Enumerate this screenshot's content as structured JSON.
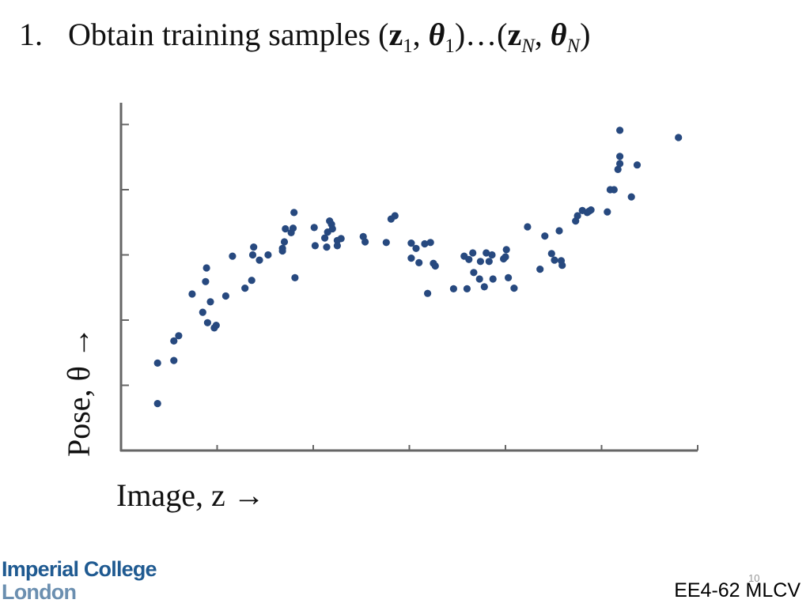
{
  "slide": {
    "title": {
      "number": "1.",
      "text": "Obtain training samples ",
      "open1": "(",
      "z": "z",
      "sub1": "1",
      "comma1": ", ",
      "theta": "θ",
      "sub1b": "1",
      "mid": ")…(",
      "z2": "z",
      "subN": "N",
      "comma2": ", ",
      "theta2": "θ",
      "subN2": "N",
      "close": ")"
    },
    "page_number": "10",
    "course_code": "EE4-62 MLCV",
    "logo": {
      "line1": "Imperial College",
      "line2": "London"
    }
  },
  "colors": {
    "points": "#27497f",
    "axes": "#666666"
  },
  "chart_data": {
    "type": "scatter",
    "title": "",
    "xlabel": "Image, z →",
    "ylabel": "Pose, θ →",
    "xlim": [
      0,
      5.8
    ],
    "ylim": [
      0,
      5.2
    ],
    "x_ticks": [
      1,
      2,
      3,
      4,
      5
    ],
    "y_ticks": [
      1,
      2,
      3,
      4,
      5
    ],
    "tick_labels_shown": false,
    "grid": false,
    "series": [
      {
        "points": [
          [
            0.38,
            1.34
          ],
          [
            0.38,
            0.72
          ],
          [
            0.55,
            1.38
          ],
          [
            0.6,
            1.76
          ],
          [
            0.55,
            1.68
          ],
          [
            0.74,
            2.4
          ],
          [
            0.85,
            2.12
          ],
          [
            0.89,
            2.8
          ],
          [
            0.88,
            2.59
          ],
          [
            0.9,
            1.96
          ],
          [
            0.93,
            2.28
          ],
          [
            0.97,
            1.88
          ],
          [
            0.99,
            1.92
          ],
          [
            1.09,
            2.37
          ],
          [
            1.16,
            2.98
          ],
          [
            1.29,
            2.49
          ],
          [
            1.36,
            2.61
          ],
          [
            1.37,
            3.0
          ],
          [
            1.38,
            3.12
          ],
          [
            1.44,
            2.92
          ],
          [
            1.53,
            3.0
          ],
          [
            1.68,
            3.1
          ],
          [
            1.68,
            3.06
          ],
          [
            1.7,
            3.2
          ],
          [
            1.71,
            3.4
          ],
          [
            1.77,
            3.34
          ],
          [
            1.79,
            3.41
          ],
          [
            1.81,
            2.65
          ],
          [
            1.8,
            3.65
          ],
          [
            2.01,
            3.42
          ],
          [
            2.02,
            3.14
          ],
          [
            2.12,
            3.26
          ],
          [
            2.14,
            3.12
          ],
          [
            2.15,
            3.35
          ],
          [
            2.17,
            3.52
          ],
          [
            2.19,
            3.47
          ],
          [
            2.2,
            3.4
          ],
          [
            2.25,
            3.22
          ],
          [
            2.25,
            3.14
          ],
          [
            2.29,
            3.25
          ],
          [
            2.52,
            3.28
          ],
          [
            2.54,
            3.2
          ],
          [
            2.76,
            3.19
          ],
          [
            2.81,
            3.55
          ],
          [
            2.85,
            3.6
          ],
          [
            3.02,
            3.18
          ],
          [
            3.02,
            2.95
          ],
          [
            3.07,
            3.1
          ],
          [
            3.1,
            2.88
          ],
          [
            3.16,
            3.17
          ],
          [
            3.19,
            2.41
          ],
          [
            3.22,
            3.19
          ],
          [
            3.25,
            2.87
          ],
          [
            3.27,
            2.83
          ],
          [
            3.46,
            2.48
          ],
          [
            3.57,
            2.98
          ],
          [
            3.6,
            2.48
          ],
          [
            3.62,
            2.93
          ],
          [
            3.66,
            3.03
          ],
          [
            3.67,
            2.73
          ],
          [
            3.73,
            2.63
          ],
          [
            3.74,
            2.9
          ],
          [
            3.78,
            2.51
          ],
          [
            3.8,
            3.03
          ],
          [
            3.83,
            2.9
          ],
          [
            3.86,
            3.0
          ],
          [
            3.87,
            2.63
          ],
          [
            3.98,
            2.94
          ],
          [
            4.0,
            2.97
          ],
          [
            4.01,
            3.08
          ],
          [
            4.03,
            2.65
          ],
          [
            4.09,
            2.49
          ],
          [
            4.23,
            3.43
          ],
          [
            4.36,
            2.78
          ],
          [
            4.41,
            3.29
          ],
          [
            4.48,
            3.02
          ],
          [
            4.51,
            2.92
          ],
          [
            4.56,
            3.37
          ],
          [
            4.58,
            2.91
          ],
          [
            4.59,
            2.84
          ],
          [
            4.73,
            3.52
          ],
          [
            4.75,
            3.6
          ],
          [
            4.8,
            3.68
          ],
          [
            4.85,
            3.65
          ],
          [
            4.89,
            3.69
          ],
          [
            4.87,
            3.67
          ],
          [
            5.06,
            3.66
          ],
          [
            5.09,
            4.0
          ],
          [
            5.13,
            4.0
          ],
          [
            5.17,
            4.31
          ],
          [
            5.19,
            4.4
          ],
          [
            5.19,
            4.51
          ],
          [
            5.19,
            4.91
          ],
          [
            5.31,
            3.89
          ],
          [
            5.37,
            4.38
          ],
          [
            5.8,
            4.8
          ]
        ]
      }
    ]
  }
}
